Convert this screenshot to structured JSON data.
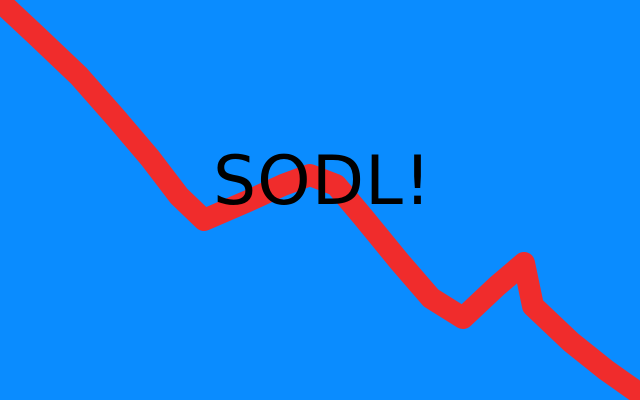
{
  "headline": "SODL!",
  "colors": {
    "background": "#0a8cff",
    "trend_line": "#f02c2c",
    "text": "#000000"
  }
}
